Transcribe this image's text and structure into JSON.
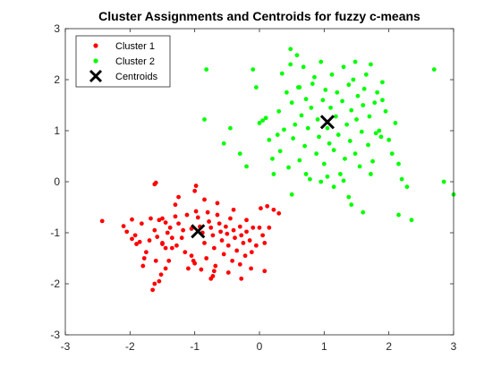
{
  "chart_data": {
    "type": "scatter",
    "title": "Cluster Assignments and Centroids for fuzzy c-means",
    "xlabel": "",
    "ylabel": "",
    "xlim": [
      -3,
      3
    ],
    "ylim": [
      -3,
      3
    ],
    "x_ticks": [
      -3,
      -2,
      -1,
      0,
      1,
      2,
      3
    ],
    "y_ticks": [
      -3,
      -2,
      -1,
      0,
      1,
      2,
      3
    ],
    "x_tick_labels": [
      "-3",
      "-2",
      "-1",
      "0",
      "1",
      "2",
      "3"
    ],
    "y_tick_labels": [
      "-3",
      "-2",
      "-1",
      "0",
      "1",
      "2",
      "3"
    ],
    "grid": false,
    "legend_position": "top-left",
    "series": [
      {
        "name": "Cluster 1",
        "color": "#ff0000",
        "marker": "dot",
        "points": [
          [
            -2.43,
            -0.77
          ],
          [
            -2.1,
            -0.87
          ],
          [
            -2.05,
            -0.98
          ],
          [
            -1.97,
            -0.74
          ],
          [
            -1.92,
            -1.05
          ],
          [
            -1.97,
            -1.12
          ],
          [
            -1.85,
            -1.18
          ],
          [
            -1.82,
            -0.82
          ],
          [
            -1.78,
            -1.5
          ],
          [
            -1.75,
            -1.38
          ],
          [
            -1.68,
            -0.72
          ],
          [
            -1.62,
            -0.95
          ],
          [
            -1.58,
            -1.08
          ],
          [
            -1.55,
            -0.75
          ],
          [
            -1.5,
            -1.2
          ],
          [
            -1.62,
            -0.05
          ],
          [
            -1.6,
            -0.02
          ],
          [
            -1.5,
            -0.72
          ],
          [
            -1.45,
            -0.8
          ],
          [
            -1.42,
            -1.0
          ],
          [
            -1.45,
            -1.3
          ],
          [
            -1.38,
            -0.9
          ],
          [
            -1.35,
            -1.1
          ],
          [
            -1.3,
            -0.68
          ],
          [
            -1.28,
            -1.25
          ],
          [
            -1.25,
            -0.82
          ],
          [
            -1.2,
            -1.1
          ],
          [
            -1.18,
            -0.95
          ],
          [
            -1.15,
            -1.38
          ],
          [
            -1.12,
            -0.65
          ],
          [
            -1.05,
            -0.92
          ],
          [
            -1.1,
            -1.7
          ],
          [
            -1.02,
            -1.55
          ],
          [
            -0.98,
            -0.58
          ],
          [
            -0.95,
            -0.7
          ],
          [
            -0.92,
            -0.88
          ],
          [
            -0.88,
            -1.0
          ],
          [
            -0.85,
            -1.2
          ],
          [
            -0.82,
            -1.5
          ],
          [
            -0.8,
            -0.6
          ],
          [
            -0.78,
            -0.78
          ],
          [
            -0.75,
            -0.9
          ],
          [
            -0.72,
            -1.05
          ],
          [
            -0.7,
            -1.3
          ],
          [
            -0.68,
            -1.65
          ],
          [
            -0.65,
            -0.65
          ],
          [
            -0.62,
            -0.82
          ],
          [
            -0.6,
            -0.98
          ],
          [
            -0.58,
            -1.15
          ],
          [
            -0.55,
            -1.42
          ],
          [
            -0.52,
            -0.88
          ],
          [
            -0.5,
            -1.02
          ],
          [
            -0.48,
            -1.25
          ],
          [
            -0.45,
            -0.72
          ],
          [
            -0.42,
            -1.55
          ],
          [
            -0.4,
            -0.95
          ],
          [
            -0.38,
            -1.1
          ],
          [
            -0.35,
            -1.35
          ],
          [
            -0.3,
            -0.88
          ],
          [
            -0.28,
            -1.05
          ],
          [
            -0.25,
            -1.2
          ],
          [
            -0.22,
            -1.45
          ],
          [
            -0.2,
            -0.75
          ],
          [
            -0.15,
            -1.15
          ],
          [
            -0.12,
            -1.38
          ],
          [
            -0.1,
            -0.9
          ],
          [
            -0.05,
            -1.25
          ],
          [
            0.02,
            -0.52
          ],
          [
            0.05,
            -1.05
          ],
          [
            0.08,
            -1.2
          ],
          [
            0.12,
            -0.48
          ],
          [
            0.15,
            -0.9
          ],
          [
            0.22,
            -0.55
          ],
          [
            -0.98,
            -0.08
          ],
          [
            -1.0,
            -0.18
          ],
          [
            -0.2,
            -0.98
          ],
          [
            0.08,
            -1.75
          ],
          [
            -1.65,
            -2.12
          ],
          [
            -1.62,
            -2.0
          ],
          [
            -1.55,
            -1.95
          ],
          [
            -1.52,
            -1.82
          ],
          [
            -1.45,
            -1.7
          ],
          [
            -1.4,
            -1.55
          ],
          [
            -1.35,
            -1.3
          ],
          [
            -1.0,
            -1.6
          ],
          [
            -1.05,
            -1.45
          ],
          [
            -0.9,
            -1.72
          ],
          [
            -0.75,
            -1.9
          ],
          [
            -0.7,
            -1.75
          ],
          [
            -0.72,
            -1.85
          ],
          [
            -1.5,
            -1.22
          ],
          [
            -1.6,
            -1.55
          ],
          [
            -1.7,
            -1.15
          ],
          [
            -1.8,
            -1.65
          ],
          [
            -1.9,
            -1.22
          ],
          [
            -0.85,
            -0.35
          ],
          [
            -1.25,
            -0.3
          ],
          [
            -1.3,
            -0.45
          ],
          [
            -0.65,
            -0.42
          ],
          [
            -0.4,
            -0.55
          ],
          [
            0.3,
            -0.62
          ],
          [
            0.0,
            -0.9
          ],
          [
            -0.13,
            -1.7
          ],
          [
            -0.3,
            -1.62
          ],
          [
            -0.48,
            -1.78
          ],
          [
            -0.28,
            -1.9
          ]
        ]
      },
      {
        "name": "Cluster 2",
        "color": "#00ff00",
        "marker": "dot",
        "points": [
          [
            -0.82,
            2.2
          ],
          [
            -0.85,
            1.22
          ],
          [
            -0.45,
            1.05
          ],
          [
            -0.55,
            0.75
          ],
          [
            -0.3,
            0.55
          ],
          [
            -0.2,
            0.3
          ],
          [
            -0.1,
            2.2
          ],
          [
            -0.05,
            1.85
          ],
          [
            0.0,
            1.15
          ],
          [
            0.05,
            1.2
          ],
          [
            0.1,
            1.25
          ],
          [
            0.15,
            0.82
          ],
          [
            0.2,
            0.45
          ],
          [
            0.22,
            0.15
          ],
          [
            0.28,
            0.92
          ],
          [
            0.3,
            1.38
          ],
          [
            0.32,
            0.6
          ],
          [
            0.35,
            2.12
          ],
          [
            0.38,
            1.02
          ],
          [
            0.42,
            1.75
          ],
          [
            0.45,
            0.28
          ],
          [
            0.48,
            2.6
          ],
          [
            0.5,
            1.55
          ],
          [
            0.52,
            0.85
          ],
          [
            0.55,
            1.12
          ],
          [
            0.58,
            2.48
          ],
          [
            0.6,
            1.85
          ],
          [
            0.62,
            0.42
          ],
          [
            0.65,
            1.3
          ],
          [
            0.68,
            2.25
          ],
          [
            0.7,
            0.7
          ],
          [
            0.72,
            1.62
          ],
          [
            0.75,
            1.05
          ],
          [
            0.78,
            0.05
          ],
          [
            0.8,
            1.45
          ],
          [
            0.82,
            1.92
          ],
          [
            0.85,
            2.05
          ],
          [
            0.88,
            0.55
          ],
          [
            0.9,
            1.22
          ],
          [
            0.92,
            0.88
          ],
          [
            0.95,
            2.35
          ],
          [
            0.98,
            1.6
          ],
          [
            1.0,
            0.35
          ],
          [
            1.02,
            1.8
          ],
          [
            1.05,
            1.05
          ],
          [
            1.08,
            0.75
          ],
          [
            1.1,
            1.45
          ],
          [
            1.12,
            2.1
          ],
          [
            1.15,
            0.62
          ],
          [
            1.18,
            1.28
          ],
          [
            1.2,
            1.75
          ],
          [
            1.22,
            0.92
          ],
          [
            1.25,
            0.15
          ],
          [
            1.28,
            1.58
          ],
          [
            1.3,
            2.25
          ],
          [
            1.32,
            0.45
          ],
          [
            1.35,
            1.12
          ],
          [
            1.38,
            1.9
          ],
          [
            1.4,
            0.8
          ],
          [
            1.42,
            1.4
          ],
          [
            1.45,
            2.0
          ],
          [
            1.48,
            0.55
          ],
          [
            1.5,
            1.22
          ],
          [
            1.52,
            1.68
          ],
          [
            1.55,
            0.3
          ],
          [
            1.58,
            0.98
          ],
          [
            1.6,
            1.5
          ],
          [
            1.62,
            1.82
          ],
          [
            1.65,
            2.1
          ],
          [
            1.68,
            0.72
          ],
          [
            1.7,
            1.28
          ],
          [
            1.72,
            2.3
          ],
          [
            1.75,
            0.4
          ],
          [
            1.78,
            1.55
          ],
          [
            1.8,
            0.95
          ],
          [
            1.82,
            1.75
          ],
          [
            1.85,
            1.0
          ],
          [
            1.9,
            1.6
          ],
          [
            1.95,
            1.38
          ],
          [
            2.0,
            0.82
          ],
          [
            2.05,
            0.55
          ],
          [
            2.1,
            1.15
          ],
          [
            2.15,
            0.35
          ],
          [
            2.2,
            0.05
          ],
          [
            2.28,
            -0.1
          ],
          [
            2.35,
            -0.75
          ],
          [
            2.7,
            2.2
          ],
          [
            2.85,
            0.0
          ],
          [
            3.0,
            -0.25
          ],
          [
            1.3,
            0.02
          ],
          [
            1.38,
            -0.3
          ],
          [
            1.42,
            -0.45
          ],
          [
            1.6,
            -0.6
          ],
          [
            1.05,
            0.1
          ],
          [
            1.15,
            -0.1
          ],
          [
            0.5,
            -0.25
          ],
          [
            0.95,
            0.0
          ],
          [
            0.72,
            0.15
          ],
          [
            2.15,
            -0.65
          ],
          [
            1.48,
            2.35
          ],
          [
            0.62,
            1.85
          ],
          [
            0.48,
            2.3
          ],
          [
            1.9,
            1.95
          ],
          [
            1.88,
            0.88
          ],
          [
            1.72,
            0.15
          ]
        ]
      },
      {
        "name": "Centroids",
        "color": "#000000",
        "marker": "x",
        "points": [
          [
            -0.95,
            -0.97
          ],
          [
            1.05,
            1.17
          ]
        ]
      }
    ]
  }
}
